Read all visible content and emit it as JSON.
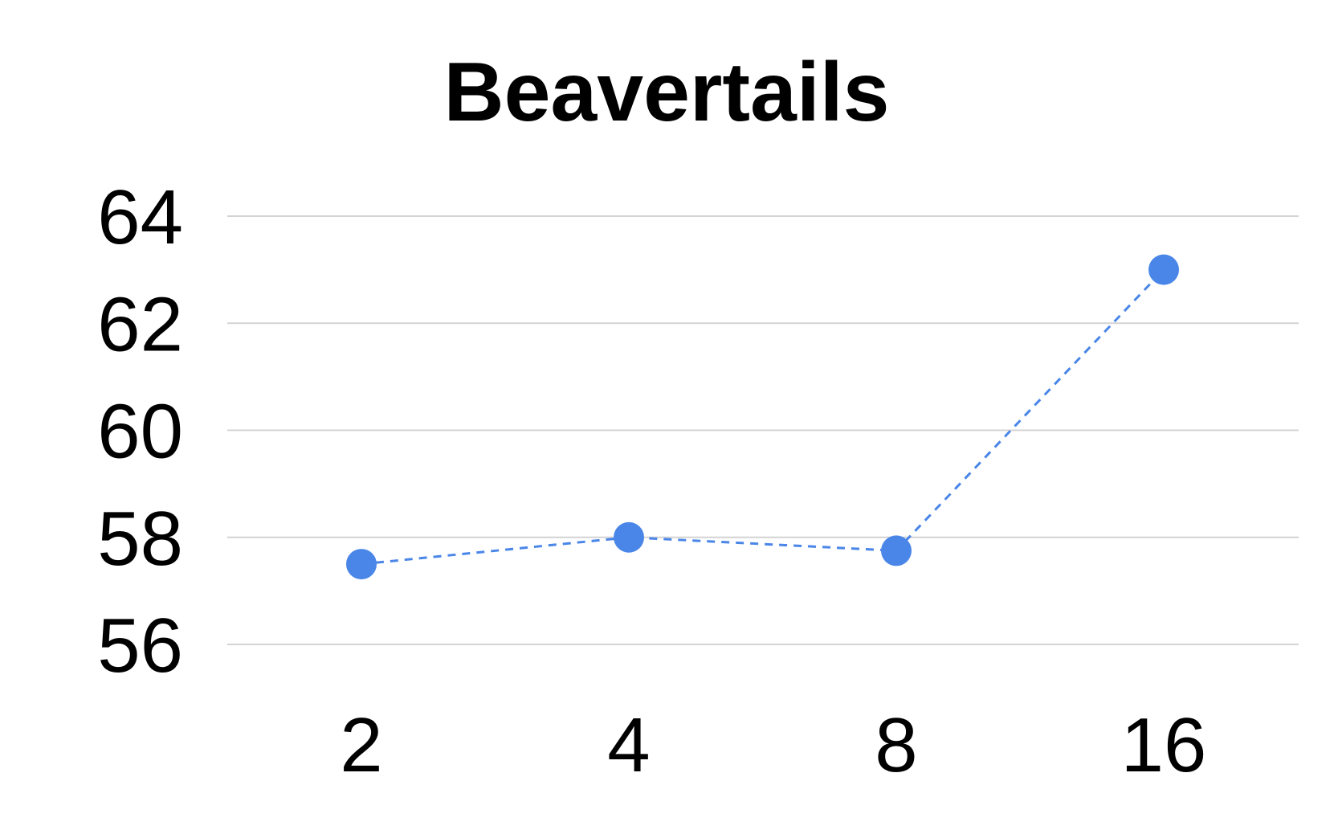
{
  "chart_data": {
    "type": "line",
    "title": "Beavertails",
    "xlabel": "",
    "ylabel": "",
    "categories": [
      "2",
      "4",
      "8",
      "16"
    ],
    "series": [
      {
        "values": [
          57.5,
          58.0,
          57.75,
          63.0
        ]
      }
    ],
    "ylim": [
      56,
      64
    ],
    "yticks": [
      "56",
      "58",
      "60",
      "62",
      "64"
    ],
    "grid": true,
    "legend": "none",
    "line_style": "dashed",
    "marker": "circle",
    "colors": {
      "series": "#4a86e8",
      "grid": "#d3d3d3",
      "text": "#000000"
    }
  }
}
